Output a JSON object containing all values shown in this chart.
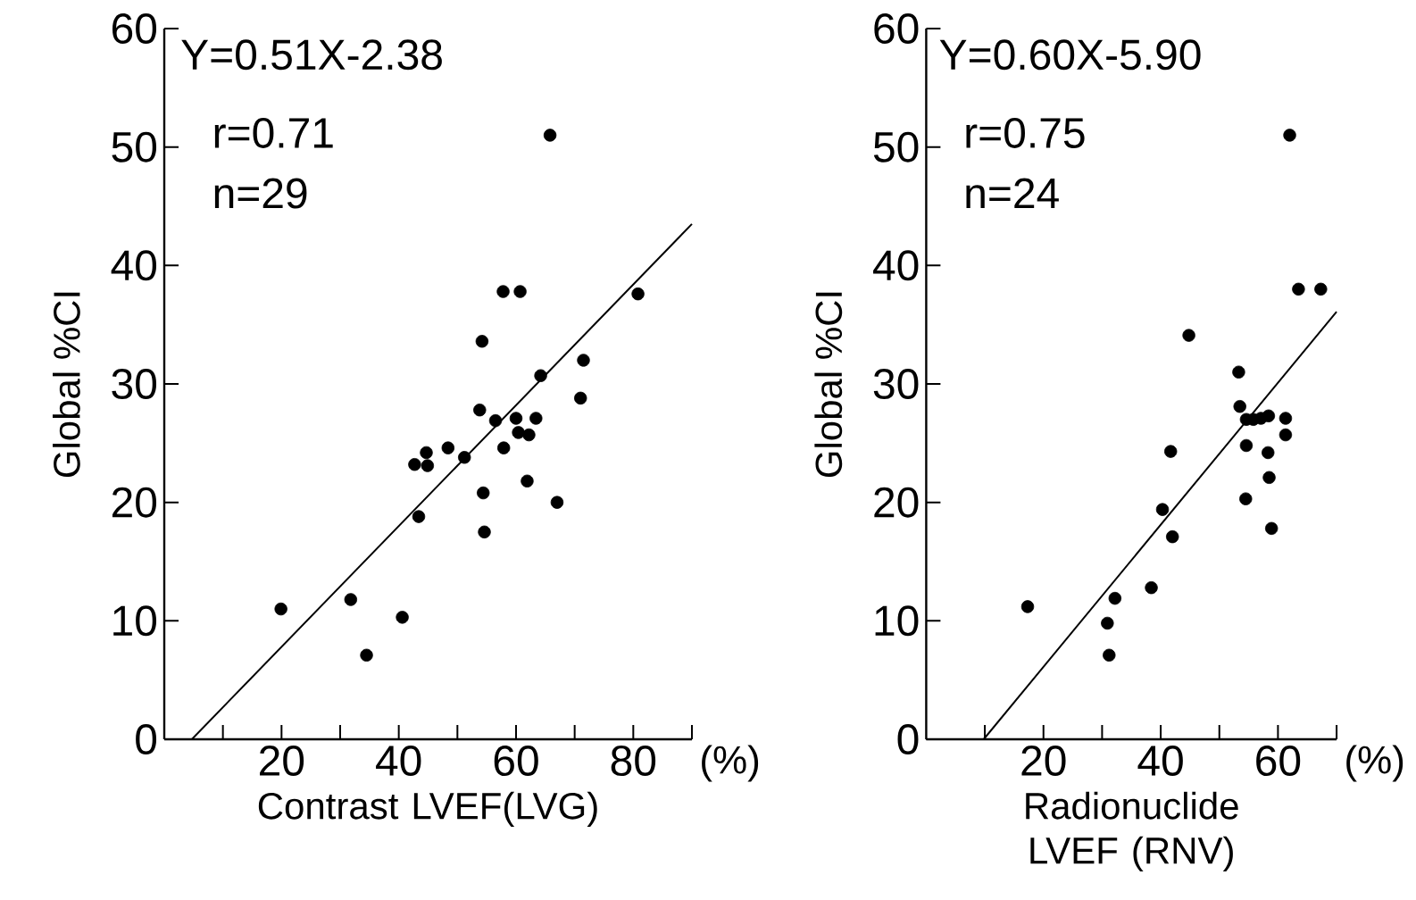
{
  "chart_data": [
    {
      "type": "scatter",
      "xlabel": "Contrast LVEF(LVG)",
      "ylabel": "Global %CI",
      "grid": false,
      "annotations": [
        "Y=0.51X-2.38",
        "r=0.71",
        "n=29",
        "(%)"
      ],
      "xlim": [
        0,
        90
      ],
      "ylim": [
        0,
        60
      ],
      "xticks": [
        {
          "value": 10,
          "label": null
        },
        20,
        {
          "value": 30,
          "label": null
        },
        40,
        {
          "value": 50,
          "label": null
        },
        60,
        {
          "value": 70,
          "label": null
        },
        80,
        {
          "value": 90,
          "label": null
        }
      ],
      "yticks": [
        0,
        10,
        20,
        30,
        40,
        50,
        60
      ],
      "series": [
        {
          "marker": "circle",
          "color": "#000000",
          "x": [
            19.9,
            31.8,
            34.5,
            40.6,
            43.4,
            42.7,
            44.7,
            44.9,
            48.4,
            51.2,
            53.8,
            54.2,
            54.4,
            54.6,
            56.5,
            57.8,
            57.9,
            60.0,
            60.4,
            60.7,
            62.2,
            61.9,
            63.4,
            64.2,
            65.8,
            67.0,
            71.0,
            71.5,
            80.8
          ],
          "values": [
            11.0,
            11.8,
            7.1,
            10.3,
            18.8,
            23.2,
            24.2,
            23.1,
            24.6,
            23.8,
            27.8,
            33.6,
            20.8,
            17.5,
            26.9,
            37.8,
            24.6,
            27.1,
            25.9,
            37.8,
            25.7,
            21.8,
            27.1,
            30.7,
            51.0,
            20.0,
            28.8,
            32.0,
            37.6
          ]
        },
        {
          "type": "line",
          "marker": "none",
          "color": "#000000",
          "x": [
            4.7,
            90
          ],
          "values": [
            0,
            43.5
          ]
        }
      ]
    },
    {
      "type": "scatter",
      "xlabel": "Radionuclide LVEF (RNV)",
      "ylabel": "Global %CI",
      "grid": false,
      "annotations": [
        "Y=0.60X-5.90",
        "r=0.75",
        "n=24",
        "(%)"
      ],
      "xlim": [
        0,
        70
      ],
      "ylim": [
        0,
        60
      ],
      "xticks": [
        {
          "value": 10,
          "label": null
        },
        20,
        {
          "value": 30,
          "label": null
        },
        40,
        {
          "value": 50,
          "label": null
        },
        60,
        {
          "value": 70,
          "label": null
        }
      ],
      "yticks": [
        0,
        10,
        20,
        30,
        40,
        50,
        60
      ],
      "series": [
        {
          "marker": "circle",
          "color": "#000000",
          "x": [
            17.3,
            30.9,
            31.2,
            32.2,
            38.4,
            40.3,
            41.7,
            42.0,
            44.8,
            53.3,
            53.5,
            54.6,
            54.6,
            54.5,
            55.8,
            57.1,
            58.4,
            58.3,
            58.5,
            58.9,
            61.3,
            61.3,
            62.0,
            63.5,
            67.3
          ],
          "values": [
            11.2,
            9.8,
            7.1,
            11.9,
            12.8,
            19.4,
            24.3,
            17.1,
            34.1,
            31.0,
            28.1,
            27.0,
            24.8,
            20.3,
            27.0,
            27.1,
            27.3,
            24.2,
            22.1,
            17.8,
            27.1,
            25.7,
            51.0,
            38.0,
            38.0
          ]
        },
        {
          "type": "line",
          "marker": "none",
          "color": "#000000",
          "x": [
            9.8,
            70
          ],
          "values": [
            0,
            36.1
          ]
        }
      ]
    }
  ]
}
